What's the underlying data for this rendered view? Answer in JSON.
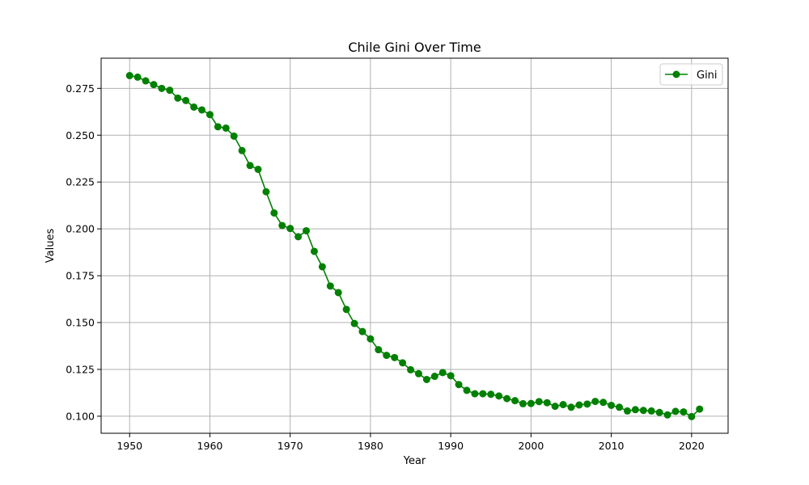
{
  "chart_data": {
    "type": "line",
    "title": "Chile Gini Over Time",
    "xlabel": "Year",
    "ylabel": "Values",
    "xlim": [
      1946.45,
      2024.55
    ],
    "ylim": [
      0.0909,
      0.2911
    ],
    "xticks": [
      1950,
      1960,
      1970,
      1980,
      1990,
      2000,
      2010,
      2020
    ],
    "yticks": [
      0.1,
      0.125,
      0.15,
      0.175,
      0.2,
      0.225,
      0.25,
      0.275
    ],
    "grid": true,
    "legend_position": "top-right",
    "series": [
      {
        "name": "Gini",
        "color": "#008000",
        "marker": "circle",
        "x": [
          1950,
          1951,
          1952,
          1953,
          1954,
          1955,
          1956,
          1957,
          1958,
          1959,
          1960,
          1961,
          1962,
          1963,
          1964,
          1965,
          1966,
          1967,
          1968,
          1969,
          1970,
          1971,
          1972,
          1973,
          1974,
          1975,
          1976,
          1977,
          1978,
          1979,
          1980,
          1981,
          1982,
          1983,
          1984,
          1985,
          1986,
          1987,
          1988,
          1989,
          1990,
          1991,
          1992,
          1993,
          1994,
          1995,
          1996,
          1997,
          1998,
          1999,
          2000,
          2001,
          2002,
          2003,
          2004,
          2005,
          2006,
          2007,
          2008,
          2009,
          2010,
          2011,
          2012,
          2013,
          2014,
          2015,
          2016,
          2017,
          2018,
          2019,
          2020,
          2021
        ],
        "values": [
          0.2818,
          0.281,
          0.279,
          0.277,
          0.275,
          0.274,
          0.2698,
          0.2685,
          0.265,
          0.2635,
          0.261,
          0.2545,
          0.2538,
          0.2495,
          0.2418,
          0.2338,
          0.2318,
          0.2198,
          0.2085,
          0.2018,
          0.2002,
          0.1958,
          0.199,
          0.188,
          0.1798,
          0.1695,
          0.166,
          0.157,
          0.1495,
          0.1452,
          0.1413,
          0.1355,
          0.1325,
          0.1313,
          0.1285,
          0.1248,
          0.1227,
          0.1196,
          0.1213,
          0.1233,
          0.1216,
          0.1169,
          0.1138,
          0.112,
          0.112,
          0.1117,
          0.1108,
          0.1094,
          0.1083,
          0.1067,
          0.1068,
          0.1078,
          0.1072,
          0.1053,
          0.1062,
          0.1048,
          0.106,
          0.1065,
          0.1079,
          0.1074,
          0.1058,
          0.1048,
          0.1028,
          0.1035,
          0.1031,
          0.1028,
          0.102,
          0.1007,
          0.1026,
          0.1023,
          0.0998,
          0.1038
        ]
      }
    ]
  }
}
